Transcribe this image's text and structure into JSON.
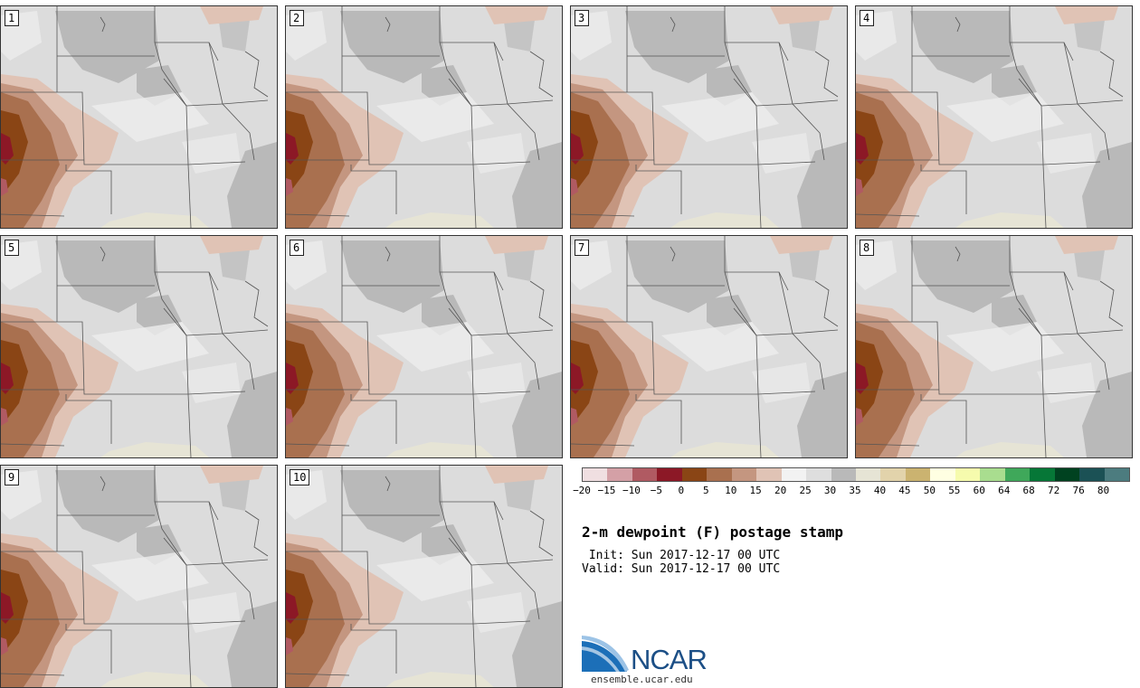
{
  "panels": [
    {
      "label": "1"
    },
    {
      "label": "2"
    },
    {
      "label": "3"
    },
    {
      "label": "4"
    },
    {
      "label": "5"
    },
    {
      "label": "6"
    },
    {
      "label": "7"
    },
    {
      "label": "8"
    },
    {
      "label": "9"
    },
    {
      "label": "10"
    }
  ],
  "colorbar": {
    "colors": [
      "#f0dfe1",
      "#d4a0a6",
      "#b05a62",
      "#8c1826",
      "#8a4515",
      "#a9704f",
      "#c49680",
      "#e0c3b5",
      "#f2f2f2",
      "#dedede",
      "#b9b9b9",
      "#e6e4d5",
      "#e2d3ab",
      "#cbb370",
      "#ffffe2",
      "#f6fbad",
      "#a9dd8f",
      "#3fa85a",
      "#067737",
      "#004220",
      "#1b5155",
      "#4c7c7f"
    ],
    "ticks": [
      "−20",
      "−15",
      "−10",
      "−5",
      "0",
      "5",
      "10",
      "15",
      "20",
      "25",
      "30",
      "35",
      "40",
      "45",
      "50",
      "55",
      "60",
      "64",
      "68",
      "72",
      "76",
      "80"
    ]
  },
  "title": "2-m dewpoint (F) postage stamp",
  "init_line": " Init: Sun 2017-12-17 00 UTC",
  "valid_line": "Valid: Sun 2017-12-17 00 UTC",
  "logo": {
    "name": "NCAR",
    "url": "ensemble.ucar.edu"
  }
}
